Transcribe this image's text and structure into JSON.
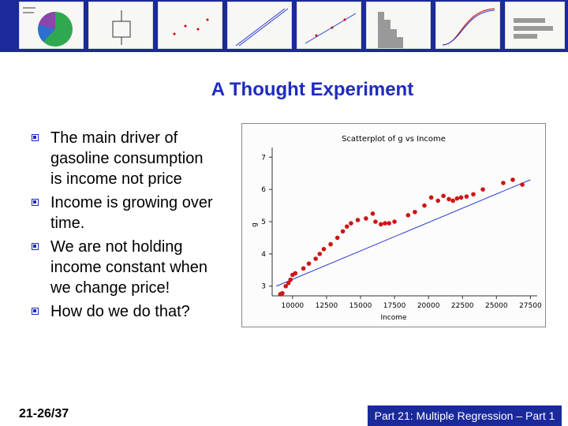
{
  "slide": {
    "title": "A Thought Experiment",
    "bullets": [
      "The main driver of gasoline consumption is income not price",
      "Income is growing over time.",
      "We are not holding income constant when we change price!",
      "How do we do that?"
    ],
    "footer_left": "21-26/37",
    "footer_right": "Part 21: Multiple Regression – Part 1"
  },
  "colors": {
    "banner": "#1a2a9a",
    "title": "#1f2bbf",
    "points": "#d01414",
    "fit_line": "#2a3ad0"
  },
  "chart_data": {
    "type": "scatter",
    "title": "Scatterplot of g vs Income",
    "xlabel": "Income",
    "ylabel": "g",
    "xlim": [
      8500,
      28000
    ],
    "ylim": [
      2.7,
      7.3
    ],
    "xticks": [
      "10000",
      "12500",
      "15000",
      "17500",
      "20000",
      "22500",
      "25000",
      "27500"
    ],
    "yticks": [
      "3",
      "4",
      "5",
      "6",
      "7"
    ],
    "trend_line": {
      "x": [
        8800,
        27500
      ],
      "y": [
        3.0,
        6.3
      ]
    },
    "points": [
      {
        "x": 9100,
        "y": 2.75
      },
      {
        "x": 9250,
        "y": 2.78
      },
      {
        "x": 9500,
        "y": 3.0
      },
      {
        "x": 9700,
        "y": 3.1
      },
      {
        "x": 9850,
        "y": 3.2
      },
      {
        "x": 10000,
        "y": 3.35
      },
      {
        "x": 10200,
        "y": 3.4
      },
      {
        "x": 10800,
        "y": 3.55
      },
      {
        "x": 11200,
        "y": 3.7
      },
      {
        "x": 11700,
        "y": 3.85
      },
      {
        "x": 12000,
        "y": 4.0
      },
      {
        "x": 12300,
        "y": 4.15
      },
      {
        "x": 12800,
        "y": 4.3
      },
      {
        "x": 13300,
        "y": 4.5
      },
      {
        "x": 13700,
        "y": 4.7
      },
      {
        "x": 14000,
        "y": 4.85
      },
      {
        "x": 14300,
        "y": 4.95
      },
      {
        "x": 14800,
        "y": 5.05
      },
      {
        "x": 15400,
        "y": 5.1
      },
      {
        "x": 15900,
        "y": 5.25
      },
      {
        "x": 16100,
        "y": 5.0
      },
      {
        "x": 16500,
        "y": 4.92
      },
      {
        "x": 16800,
        "y": 4.95
      },
      {
        "x": 17100,
        "y": 4.95
      },
      {
        "x": 17500,
        "y": 5.0
      },
      {
        "x": 18500,
        "y": 5.2
      },
      {
        "x": 19000,
        "y": 5.3
      },
      {
        "x": 19700,
        "y": 5.5
      },
      {
        "x": 20200,
        "y": 5.75
      },
      {
        "x": 20700,
        "y": 5.65
      },
      {
        "x": 21100,
        "y": 5.8
      },
      {
        "x": 21500,
        "y": 5.7
      },
      {
        "x": 21800,
        "y": 5.65
      },
      {
        "x": 22100,
        "y": 5.72
      },
      {
        "x": 22400,
        "y": 5.75
      },
      {
        "x": 22800,
        "y": 5.78
      },
      {
        "x": 23300,
        "y": 5.85
      },
      {
        "x": 24000,
        "y": 6.0
      },
      {
        "x": 25500,
        "y": 6.2
      },
      {
        "x": 26200,
        "y": 6.3
      },
      {
        "x": 26900,
        "y": 6.15
      }
    ]
  }
}
